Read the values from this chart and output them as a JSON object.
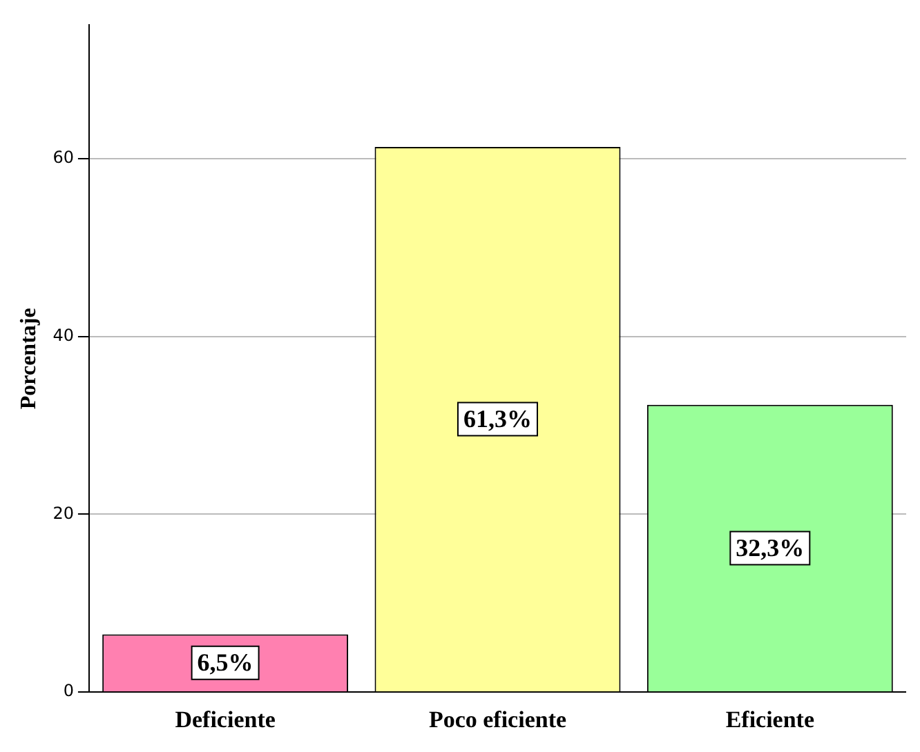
{
  "chart_data": {
    "type": "bar",
    "ylabel": "Porcentaje",
    "categories": [
      "Deficiente",
      "Poco eficiente",
      "Eficiente"
    ],
    "values": [
      6.5,
      61.3,
      32.3
    ],
    "colors": [
      "#ff80b0",
      "#ffff99",
      "#99ff99"
    ],
    "value_labels": [
      "6,5%",
      "61,3%",
      "32,3%"
    ],
    "ylim": [
      0,
      75
    ],
    "yticks": [
      0,
      20,
      40,
      60
    ],
    "grid": "y"
  }
}
